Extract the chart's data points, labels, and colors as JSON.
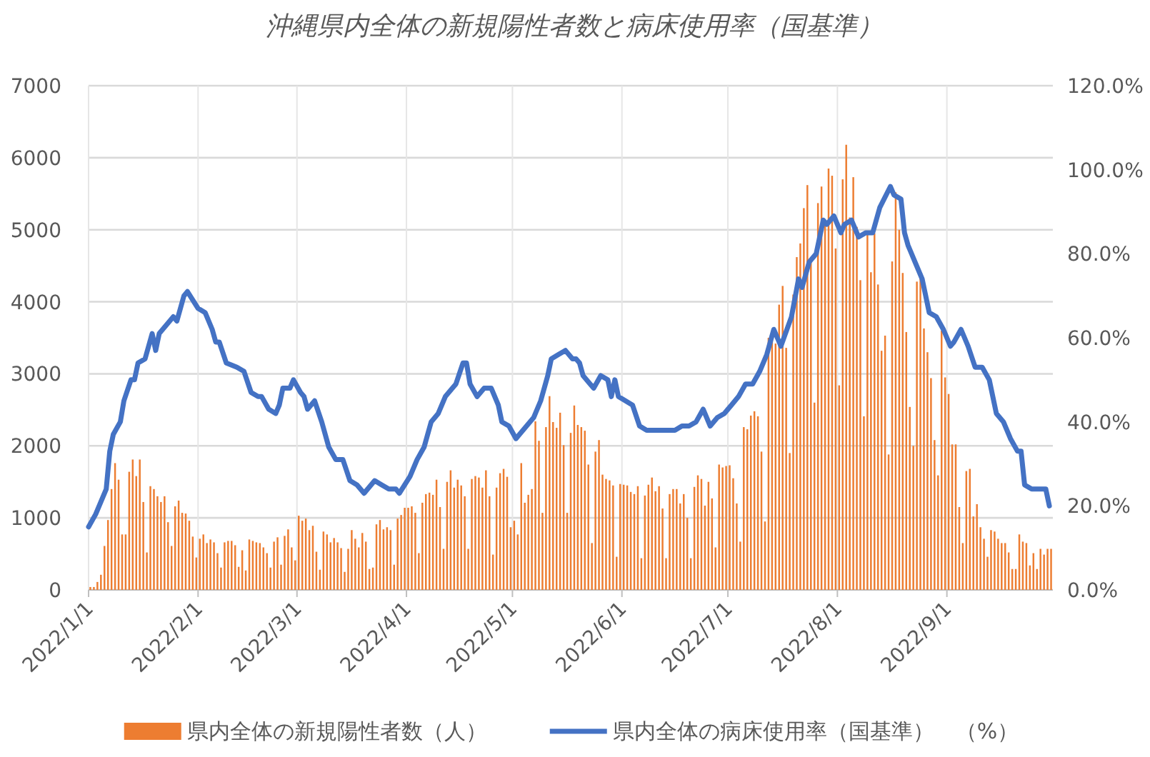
{
  "chart_data": {
    "type": "bar",
    "title": "沖縄県内全体の新規陽性者数と病床使用率（国基準）",
    "x": [
      "2022-01-01",
      "2022-01-02",
      "2022-01-03",
      "2022-01-04",
      "2022-01-05",
      "2022-01-06",
      "2022-01-07",
      "2022-01-08",
      "2022-01-09",
      "2022-01-10",
      "2022-01-11",
      "2022-01-12",
      "2022-01-13",
      "2022-01-14",
      "2022-01-15",
      "2022-01-16",
      "2022-01-17",
      "2022-01-18",
      "2022-01-19",
      "2022-01-20",
      "2022-01-21",
      "2022-01-22",
      "2022-01-23",
      "2022-01-24",
      "2022-01-25",
      "2022-01-26",
      "2022-01-27",
      "2022-01-28",
      "2022-01-29",
      "2022-01-30",
      "2022-01-31",
      "2022-02-01",
      "2022-02-02",
      "2022-02-03",
      "2022-02-04",
      "2022-02-05",
      "2022-02-06",
      "2022-02-07",
      "2022-02-08",
      "2022-02-09",
      "2022-02-10",
      "2022-02-11",
      "2022-02-12",
      "2022-02-13",
      "2022-02-14",
      "2022-02-15",
      "2022-02-16",
      "2022-02-17",
      "2022-02-18",
      "2022-02-19",
      "2022-02-20",
      "2022-02-21",
      "2022-02-22",
      "2022-02-23",
      "2022-02-24",
      "2022-02-25",
      "2022-02-26",
      "2022-02-27",
      "2022-02-28",
      "2022-03-01",
      "2022-03-02",
      "2022-03-03",
      "2022-03-04",
      "2022-03-05",
      "2022-03-06",
      "2022-03-07",
      "2022-03-08",
      "2022-03-09",
      "2022-03-10",
      "2022-03-11",
      "2022-03-12",
      "2022-03-13",
      "2022-03-14",
      "2022-03-15",
      "2022-03-16",
      "2022-03-17",
      "2022-03-18",
      "2022-03-19",
      "2022-03-20",
      "2022-03-21",
      "2022-03-22",
      "2022-03-23",
      "2022-03-24",
      "2022-03-25",
      "2022-03-26",
      "2022-03-27",
      "2022-03-28",
      "2022-03-29",
      "2022-03-30",
      "2022-03-31",
      "2022-04-01",
      "2022-04-02",
      "2022-04-03",
      "2022-04-04",
      "2022-04-05",
      "2022-04-06",
      "2022-04-07",
      "2022-04-08",
      "2022-04-09",
      "2022-04-10",
      "2022-04-11",
      "2022-04-12",
      "2022-04-13",
      "2022-04-14",
      "2022-04-15",
      "2022-04-16",
      "2022-04-17",
      "2022-04-18",
      "2022-04-19",
      "2022-04-20",
      "2022-04-21",
      "2022-04-22",
      "2022-04-23",
      "2022-04-24",
      "2022-04-25",
      "2022-04-26",
      "2022-04-27",
      "2022-04-28",
      "2022-04-29",
      "2022-04-30",
      "2022-05-01",
      "2022-05-02",
      "2022-05-03",
      "2022-05-04",
      "2022-05-05",
      "2022-05-06",
      "2022-05-07",
      "2022-05-08",
      "2022-05-09",
      "2022-05-10",
      "2022-05-11",
      "2022-05-12",
      "2022-05-13",
      "2022-05-14",
      "2022-05-15",
      "2022-05-16",
      "2022-05-17",
      "2022-05-18",
      "2022-05-19",
      "2022-05-20",
      "2022-05-21",
      "2022-05-22",
      "2022-05-23",
      "2022-05-24",
      "2022-05-25",
      "2022-05-26",
      "2022-05-27",
      "2022-05-28",
      "2022-05-29",
      "2022-05-30",
      "2022-05-31",
      "2022-06-01",
      "2022-06-02",
      "2022-06-03",
      "2022-06-04",
      "2022-06-05",
      "2022-06-06",
      "2022-06-07",
      "2022-06-08",
      "2022-06-09",
      "2022-06-10",
      "2022-06-11",
      "2022-06-12",
      "2022-06-13",
      "2022-06-14",
      "2022-06-15",
      "2022-06-16",
      "2022-06-17",
      "2022-06-18",
      "2022-06-19",
      "2022-06-20",
      "2022-06-21",
      "2022-06-22",
      "2022-06-23",
      "2022-06-24",
      "2022-06-25",
      "2022-06-26",
      "2022-06-27",
      "2022-06-28",
      "2022-06-29",
      "2022-06-30",
      "2022-07-01",
      "2022-07-02",
      "2022-07-03",
      "2022-07-04",
      "2022-07-05",
      "2022-07-06",
      "2022-07-07",
      "2022-07-08",
      "2022-07-09",
      "2022-07-10",
      "2022-07-11",
      "2022-07-12",
      "2022-07-13",
      "2022-07-14",
      "2022-07-15",
      "2022-07-16",
      "2022-07-17",
      "2022-07-18",
      "2022-07-19",
      "2022-07-20",
      "2022-07-21",
      "2022-07-22",
      "2022-07-23",
      "2022-07-24",
      "2022-07-25",
      "2022-07-26",
      "2022-07-27",
      "2022-07-28",
      "2022-07-29",
      "2022-07-30",
      "2022-07-31",
      "2022-08-01",
      "2022-08-02",
      "2022-08-03",
      "2022-08-04",
      "2022-08-05",
      "2022-08-06",
      "2022-08-07",
      "2022-08-08",
      "2022-08-09",
      "2022-08-10",
      "2022-08-11",
      "2022-08-12",
      "2022-08-13",
      "2022-08-14",
      "2022-08-15",
      "2022-08-16",
      "2022-08-17",
      "2022-08-18",
      "2022-08-19",
      "2022-08-20",
      "2022-08-21",
      "2022-08-22",
      "2022-08-23",
      "2022-08-24",
      "2022-08-25",
      "2022-08-26",
      "2022-08-27",
      "2022-08-28",
      "2022-08-29",
      "2022-08-30",
      "2022-08-31",
      "2022-09-01",
      "2022-09-02",
      "2022-09-03",
      "2022-09-04",
      "2022-09-05",
      "2022-09-06",
      "2022-09-07",
      "2022-09-08",
      "2022-09-09",
      "2022-09-10",
      "2022-09-11",
      "2022-09-12",
      "2022-09-13",
      "2022-09-14",
      "2022-09-15",
      "2022-09-16",
      "2022-09-17",
      "2022-09-18",
      "2022-09-19",
      "2022-09-20",
      "2022-09-21",
      "2022-09-22",
      "2022-09-23",
      "2022-09-24",
      "2022-09-25",
      "2022-09-26",
      "2022-09-27",
      "2022-09-28",
      "2022-09-29",
      "2022-09-30"
    ],
    "xlim": [
      "2022-01-01",
      "2022-10-01"
    ],
    "xticks": [
      {
        "value": "2022-01-01",
        "label": "2022/1/1"
      },
      {
        "value": "2022-02-01",
        "label": "2022/2/1"
      },
      {
        "value": "2022-03-01",
        "label": "2022/3/1"
      },
      {
        "value": "2022-04-01",
        "label": "2022/4/1"
      },
      {
        "value": "2022-05-01",
        "label": "2022/5/1"
      },
      {
        "value": "2022-06-01",
        "label": "2022/6/1"
      },
      {
        "value": "2022-07-01",
        "label": "2022/7/1"
      },
      {
        "value": "2022-08-01",
        "label": "2022/8/1"
      },
      {
        "value": "2022-09-01",
        "label": "2022/9/1"
      }
    ],
    "ylim": [
      0,
      7000
    ],
    "yticks": [
      0,
      1000,
      2000,
      3000,
      4000,
      5000,
      6000,
      7000
    ],
    "y2lim": [
      0,
      120
    ],
    "y2ticks": [
      {
        "value": 0,
        "label": "0.0%"
      },
      {
        "value": 20,
        "label": "20.0%"
      },
      {
        "value": 40,
        "label": "40.0%"
      },
      {
        "value": 60,
        "label": "60.0%"
      },
      {
        "value": 80,
        "label": "80.0%"
      },
      {
        "value": 100,
        "label": "100.0%"
      },
      {
        "value": 120,
        "label": "120.0%"
      }
    ],
    "grid": true,
    "legend": "bottom",
    "series": [
      {
        "name": "県内全体の新規陽性者数（人）",
        "color": "#ed7d31",
        "values": [
          40,
          40,
          110,
          210,
          610,
          970,
          1400,
          1760,
          1530,
          770,
          770,
          1640,
          1810,
          1580,
          1810,
          1220,
          520,
          1440,
          1400,
          1300,
          1220,
          1300,
          940,
          610,
          1160,
          1240,
          1070,
          1060,
          960,
          740,
          450,
          710,
          770,
          650,
          700,
          660,
          510,
          310,
          660,
          680,
          680,
          620,
          320,
          550,
          270,
          700,
          680,
          660,
          650,
          590,
          510,
          310,
          670,
          730,
          350,
          750,
          840,
          590,
          410,
          1030,
          960,
          990,
          830,
          890,
          530,
          280,
          810,
          770,
          660,
          720,
          660,
          580,
          250,
          570,
          830,
          710,
          590,
          790,
          670,
          290,
          310,
          910,
          970,
          840,
          870,
          830,
          350,
          990,
          1040,
          1140,
          1140,
          1160,
          1070,
          510,
          1210,
          1330,
          1350,
          1320,
          1530,
          1150,
          570,
          1500,
          1660,
          1420,
          1530,
          1450,
          1300,
          570,
          1540,
          1580,
          1560,
          1420,
          1660,
          1300,
          490,
          1420,
          1620,
          1680,
          1570,
          870,
          960,
          770,
          1760,
          1210,
          1320,
          1400,
          2340,
          2070,
          1070,
          2260,
          2690,
          2330,
          2250,
          2460,
          2010,
          1070,
          2180,
          2560,
          2290,
          2260,
          2210,
          1740,
          650,
          1920,
          2080,
          1600,
          1540,
          1520,
          1450,
          460,
          1470,
          1460,
          1450,
          1360,
          1330,
          1440,
          440,
          1310,
          1460,
          1560,
          1370,
          1440,
          1130,
          440,
          1330,
          1400,
          1400,
          1200,
          1330,
          1000,
          440,
          1430,
          1590,
          1540,
          1170,
          1500,
          1270,
          590,
          1740,
          1700,
          1720,
          1730,
          1550,
          1200,
          670,
          2260,
          2230,
          2420,
          2480,
          2410,
          1920,
          950,
          3500,
          3520,
          3420,
          3960,
          4220,
          3360,
          1900,
          4100,
          4620,
          4810,
          5300,
          5620,
          4600,
          2600,
          5370,
          5600,
          5140,
          5850,
          5750,
          4740,
          2840,
          5700,
          6180,
          5170,
          5730,
          5040,
          4300,
          2410,
          4980,
          4410,
          4950,
          4240,
          3320,
          3530,
          1880,
          4560,
          5520,
          5000,
          4400,
          3580,
          2540,
          2000,
          4280,
          4330,
          3630,
          3300,
          2940,
          2080,
          1590,
          3600,
          2950,
          2720,
          2020,
          2020,
          1150,
          650,
          1650,
          1680,
          1020,
          1190,
          870,
          710,
          460,
          830,
          810,
          710,
          650,
          650,
          520,
          290,
          290,
          770,
          670,
          650,
          340,
          510,
          290,
          570,
          490,
          570,
          570
        ]
      },
      {
        "name": "県内全体の病床使用率（国基準）　（%）",
        "type": "line",
        "axis": "y2",
        "color": "#4472c4",
        "x": [
          "2022-01-01",
          "2022-01-03",
          "2022-01-06",
          "2022-01-07",
          "2022-01-08",
          "2022-01-10",
          "2022-01-11",
          "2022-01-13",
          "2022-01-14",
          "2022-01-15",
          "2022-01-17",
          "2022-01-19",
          "2022-01-20",
          "2022-01-21",
          "2022-01-23",
          "2022-01-25",
          "2022-01-26",
          "2022-01-28",
          "2022-01-29",
          "2022-02-01",
          "2022-02-03",
          "2022-02-05",
          "2022-02-06",
          "2022-02-07",
          "2022-02-09",
          "2022-02-12",
          "2022-02-14",
          "2022-02-16",
          "2022-02-18",
          "2022-02-19",
          "2022-02-21",
          "2022-02-23",
          "2022-02-24",
          "2022-02-25",
          "2022-02-27",
          "2022-02-28",
          "2022-03-02",
          "2022-03-03",
          "2022-03-04",
          "2022-03-06",
          "2022-03-08",
          "2022-03-10",
          "2022-03-12",
          "2022-03-14",
          "2022-03-16",
          "2022-03-18",
          "2022-03-20",
          "2022-03-23",
          "2022-03-25",
          "2022-03-27",
          "2022-03-29",
          "2022-03-30",
          "2022-04-02",
          "2022-04-04",
          "2022-04-06",
          "2022-04-08",
          "2022-04-10",
          "2022-04-12",
          "2022-04-14",
          "2022-04-15",
          "2022-04-17",
          "2022-04-18",
          "2022-04-19",
          "2022-04-21",
          "2022-04-23",
          "2022-04-25",
          "2022-04-27",
          "2022-04-28",
          "2022-04-30",
          "2022-05-02",
          "2022-05-03",
          "2022-05-05",
          "2022-05-07",
          "2022-05-09",
          "2022-05-11",
          "2022-05-12",
          "2022-05-14",
          "2022-05-16",
          "2022-05-18",
          "2022-05-19",
          "2022-05-20",
          "2022-05-21",
          "2022-05-23",
          "2022-05-24",
          "2022-05-26",
          "2022-05-28",
          "2022-05-29",
          "2022-05-30",
          "2022-05-31",
          "2022-06-02",
          "2022-06-04",
          "2022-06-06",
          "2022-06-08",
          "2022-06-10",
          "2022-06-12",
          "2022-06-14",
          "2022-06-16",
          "2022-06-18",
          "2022-06-20",
          "2022-06-22",
          "2022-06-24",
          "2022-06-26",
          "2022-06-28",
          "2022-06-30",
          "2022-07-02",
          "2022-07-04",
          "2022-07-06",
          "2022-07-08",
          "2022-07-10",
          "2022-07-12",
          "2022-07-14",
          "2022-07-16",
          "2022-07-19",
          "2022-07-21",
          "2022-07-22",
          "2022-07-24",
          "2022-07-26",
          "2022-07-28",
          "2022-07-29",
          "2022-07-31",
          "2022-08-02",
          "2022-08-03",
          "2022-08-05",
          "2022-08-07",
          "2022-08-09",
          "2022-08-11",
          "2022-08-13",
          "2022-08-16",
          "2022-08-17",
          "2022-08-19",
          "2022-08-20",
          "2022-08-21",
          "2022-08-23",
          "2022-08-25",
          "2022-08-27",
          "2022-08-29",
          "2022-08-31",
          "2022-09-02",
          "2022-09-03",
          "2022-09-05",
          "2022-09-07",
          "2022-09-09",
          "2022-09-11",
          "2022-09-13",
          "2022-09-15",
          "2022-09-17",
          "2022-09-19",
          "2022-09-21",
          "2022-09-22",
          "2022-09-23",
          "2022-09-25",
          "2022-09-27",
          "2022-09-29",
          "2022-09-30"
        ],
        "values": [
          15,
          18,
          24,
          33,
          37,
          40,
          45,
          50,
          50,
          54,
          55,
          61,
          57,
          61,
          63,
          65,
          64,
          70,
          71,
          67,
          66,
          62,
          59,
          59,
          54,
          53,
          52,
          47,
          46,
          46,
          43,
          42,
          44,
          48,
          48,
          50,
          47,
          46,
          43,
          45,
          40,
          34,
          31,
          31,
          26,
          25,
          23,
          26,
          25,
          24,
          24,
          23,
          27,
          31,
          34,
          40,
          42,
          46,
          48,
          49,
          54,
          54,
          49,
          46,
          48,
          48,
          44,
          40,
          39,
          36,
          37,
          39,
          41,
          45,
          51,
          55,
          56,
          57,
          55,
          55,
          54,
          51,
          49,
          48,
          51,
          50,
          46,
          50,
          46,
          45,
          44,
          39,
          38,
          38,
          38,
          38,
          38,
          39,
          39,
          40,
          43,
          39,
          41,
          42,
          44,
          46,
          49,
          49,
          52,
          56,
          62,
          58,
          65,
          74,
          72,
          78,
          80,
          88,
          87,
          89,
          85,
          87,
          88,
          84,
          85,
          85,
          91,
          96,
          94,
          93,
          85,
          82,
          78,
          74,
          66,
          65,
          62,
          58,
          59,
          62,
          58,
          53,
          53,
          50,
          42,
          40,
          36,
          33,
          33,
          25,
          24,
          24,
          24,
          20
        ]
      }
    ]
  }
}
